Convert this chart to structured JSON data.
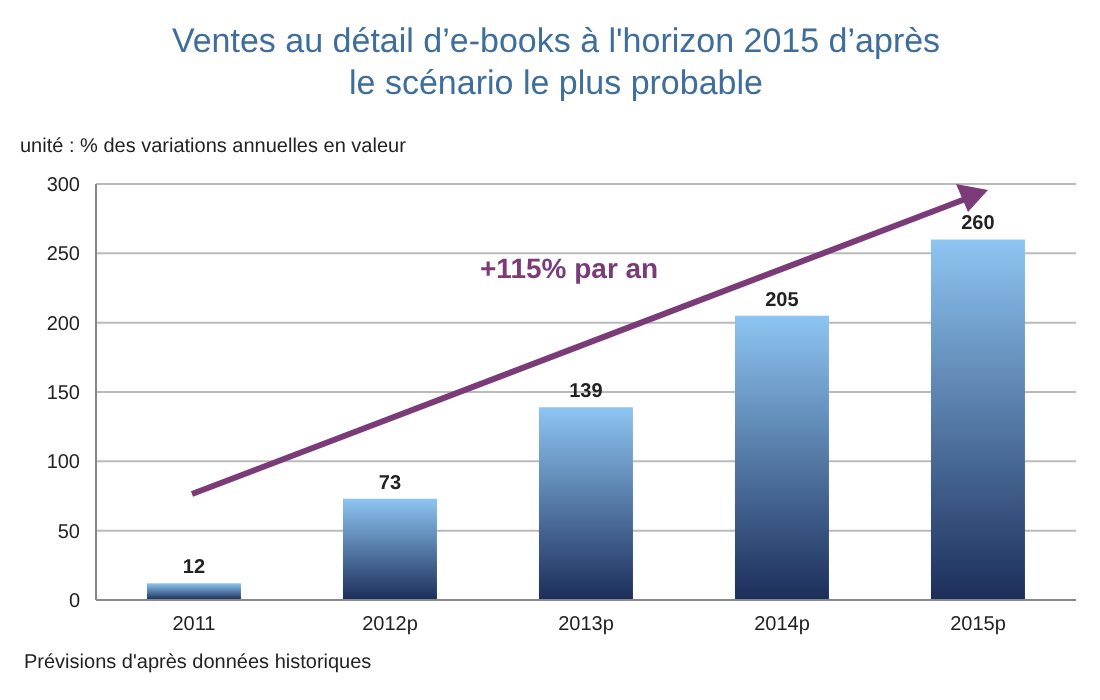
{
  "chart_data": {
    "type": "bar",
    "title": "Ventes au détail d’e-books à l'horizon 2015 d’après le scénario le plus probable",
    "ylabel": "unité : % des variations annuelles en valeur",
    "categories": [
      "2011",
      "2012p",
      "2013p",
      "2014p",
      "2015p"
    ],
    "values": [
      12,
      73,
      139,
      205,
      260
    ],
    "color": "#8ec5f2",
    "ylim": [
      0,
      300
    ],
    "yticks": [
      0,
      50,
      100,
      150,
      200,
      250,
      300
    ],
    "grid": "y",
    "data_labels": true,
    "annotations": [
      "+115% par an",
      "Prévisions d'après données historiques"
    ]
  }
}
